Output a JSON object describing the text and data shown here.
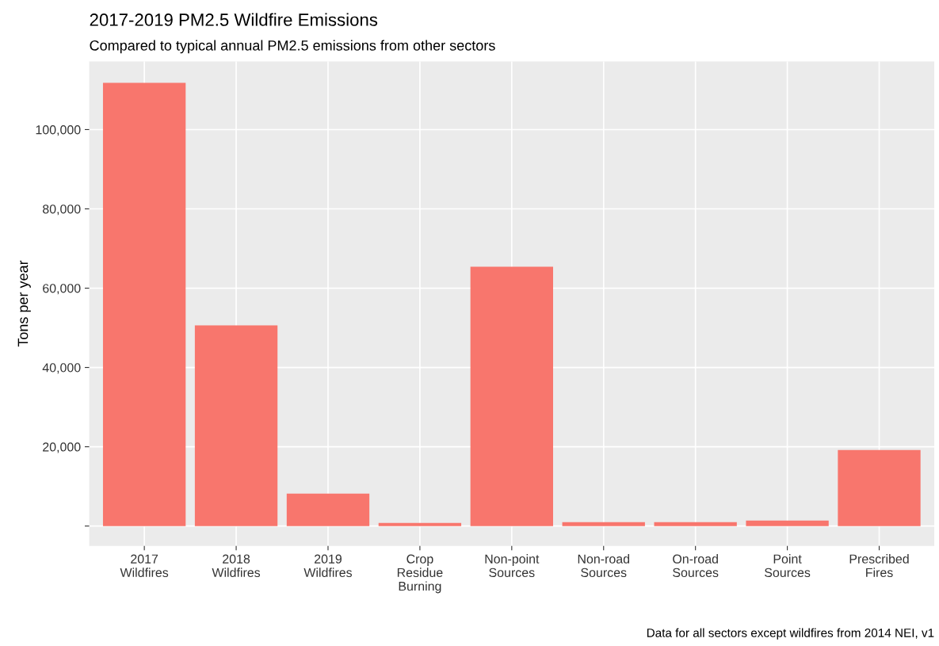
{
  "chart_data": {
    "type": "bar",
    "title": "2017-2019 PM2.5 Wildfire Emissions",
    "subtitle": "Compared to typical annual PM2.5 emissions from other sectors",
    "ylabel": "Tons per year",
    "categories": [
      "2017\nWildfires",
      "2018\nWildfires",
      "2019\nWildfires",
      "Crop\nResidue\nBurning",
      "Non-point\nSources",
      "Non-road\nSources",
      "On-road\nSources",
      "Point\nSources",
      "Prescribed\nFires"
    ],
    "values": [
      111800,
      50600,
      8200,
      800,
      65400,
      1000,
      1000,
      1400,
      19200
    ],
    "color": "#f8766d",
    "ylim": [
      -5000,
      117200
    ],
    "yticks": [
      {
        "value": 0,
        "label": null
      },
      {
        "value": 20000,
        "label": "20,000"
      },
      {
        "value": 40000,
        "label": "40,000"
      },
      {
        "value": 60000,
        "label": "60,000"
      },
      {
        "value": 80000,
        "label": "80,000"
      },
      {
        "value": 100000,
        "label": "100,000"
      }
    ],
    "grid": true,
    "annotations": [
      "Data for all sectors except wildfires from 2014 NEI, v1"
    ]
  }
}
